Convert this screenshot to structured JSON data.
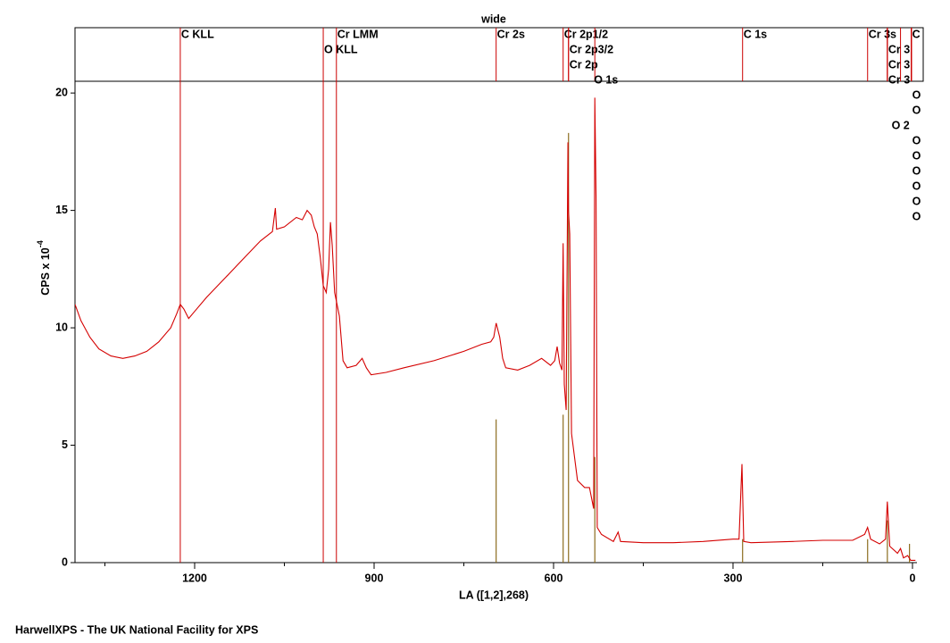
{
  "chart_data": {
    "type": "line",
    "title": "wide",
    "xlabel": "LA ([1,2],268)",
    "ylabel": "CPS x 10",
    "ylabel_exponent": "-4",
    "footer": "HarwellXPS - The UK National Facility for XPS",
    "color": "#d40000",
    "annotation_color": "#cc0000",
    "component_color": "#8c6d1f",
    "xlim": [
      1400,
      -7.5
    ],
    "ylim": [
      0,
      20.5
    ],
    "xticks": [
      1200,
      900,
      600,
      300,
      0
    ],
    "xticks_minor": [
      1350,
      1050,
      750,
      450,
      150
    ],
    "yticks": [
      0,
      5,
      10,
      15,
      20
    ],
    "x": [
      1400,
      1390,
      1375,
      1360,
      1340,
      1320,
      1300,
      1280,
      1260,
      1240,
      1230,
      1224,
      1218,
      1210,
      1200,
      1180,
      1150,
      1120,
      1090,
      1070,
      1065,
      1063,
      1050,
      1030,
      1020,
      1012,
      1005,
      1000,
      995,
      990,
      985,
      980,
      976,
      973,
      970,
      966,
      962,
      958,
      952,
      945,
      930,
      920,
      913,
      905,
      880,
      850,
      800,
      750,
      720,
      705,
      700,
      696,
      690,
      685,
      680,
      660,
      640,
      620,
      605,
      598,
      594,
      590,
      586,
      584,
      582,
      579,
      576,
      575,
      573,
      570,
      560,
      548,
      540,
      533,
      531,
      529,
      527,
      520,
      500,
      492,
      488,
      450,
      400,
      350,
      300,
      290,
      285,
      282,
      270,
      200,
      150,
      100,
      80,
      75,
      70,
      55,
      45,
      42,
      38,
      25,
      20,
      15,
      8,
      3,
      0,
      -5
    ],
    "values": [
      11.0,
      10.3,
      9.6,
      9.1,
      8.8,
      8.7,
      8.8,
      9.0,
      9.4,
      10.0,
      10.6,
      11.0,
      10.8,
      10.4,
      10.7,
      11.3,
      12.1,
      12.9,
      13.7,
      14.1,
      15.1,
      14.2,
      14.3,
      14.7,
      14.6,
      15.0,
      14.8,
      14.3,
      14.0,
      13.0,
      11.8,
      11.5,
      12.5,
      14.5,
      13.5,
      11.5,
      11.0,
      10.5,
      8.6,
      8.3,
      8.4,
      8.7,
      8.3,
      8.0,
      8.1,
      8.3,
      8.6,
      9.0,
      9.3,
      9.4,
      9.6,
      10.2,
      9.6,
      8.7,
      8.3,
      8.2,
      8.4,
      8.7,
      8.4,
      8.6,
      9.2,
      8.5,
      8.2,
      13.6,
      7.6,
      6.5,
      17.9,
      15.0,
      14.0,
      5.5,
      3.5,
      3.2,
      3.2,
      2.3,
      19.8,
      15.5,
      1.5,
      1.2,
      0.9,
      1.3,
      0.9,
      0.85,
      0.85,
      0.9,
      1.0,
      1.0,
      4.2,
      0.9,
      0.85,
      0.9,
      0.95,
      0.95,
      1.2,
      1.5,
      1.0,
      0.8,
      1.0,
      2.6,
      0.7,
      0.4,
      0.6,
      0.2,
      0.3,
      0.1,
      0.1,
      0.1
    ],
    "components": [
      {
        "x": 696,
        "value": 6.1
      },
      {
        "x": 584,
        "value": 6.3
      },
      {
        "x": 575,
        "value": 18.3
      },
      {
        "x": 531,
        "value": 4.5
      },
      {
        "x": 284,
        "value": 1.0
      },
      {
        "x": 75,
        "value": 1.0
      },
      {
        "x": 42,
        "value": 1.8
      },
      {
        "x": 5,
        "value": 0.8
      }
    ],
    "annotations": [
      {
        "label": "C KLL",
        "x": 1224,
        "full": true
      },
      {
        "label": "O KLL",
        "x": 985,
        "full": true
      },
      {
        "label": "Cr LMM",
        "x": 963,
        "full": true
      },
      {
        "label": "Cr 2s",
        "x": 696
      },
      {
        "label": "Cr 2p1/2",
        "x": 584
      },
      {
        "label": "Cr 2p3/2",
        "x": 575
      },
      {
        "label": "Cr 2p",
        "x": 575
      },
      {
        "label": "O 1s",
        "x": 531
      },
      {
        "label": "C 1s",
        "x": 284
      },
      {
        "label": "Cr 3s",
        "x": 75
      },
      {
        "label": "Cr 3",
        "x": 42
      },
      {
        "label": "Cr 3",
        "x": 42
      },
      {
        "label": "Cr 3",
        "x": 42
      },
      {
        "label": "C",
        "x": 2
      },
      {
        "label": "O",
        "x": 2
      },
      {
        "label": "O",
        "x": 2
      },
      {
        "label": "O 2",
        "x": 20
      },
      {
        "label": "O",
        "x": 2
      },
      {
        "label": "O",
        "x": 2
      },
      {
        "label": "O",
        "x": 2
      },
      {
        "label": "O",
        "x": 2
      },
      {
        "label": "O",
        "x": 2
      },
      {
        "label": "O",
        "x": 2
      }
    ]
  }
}
